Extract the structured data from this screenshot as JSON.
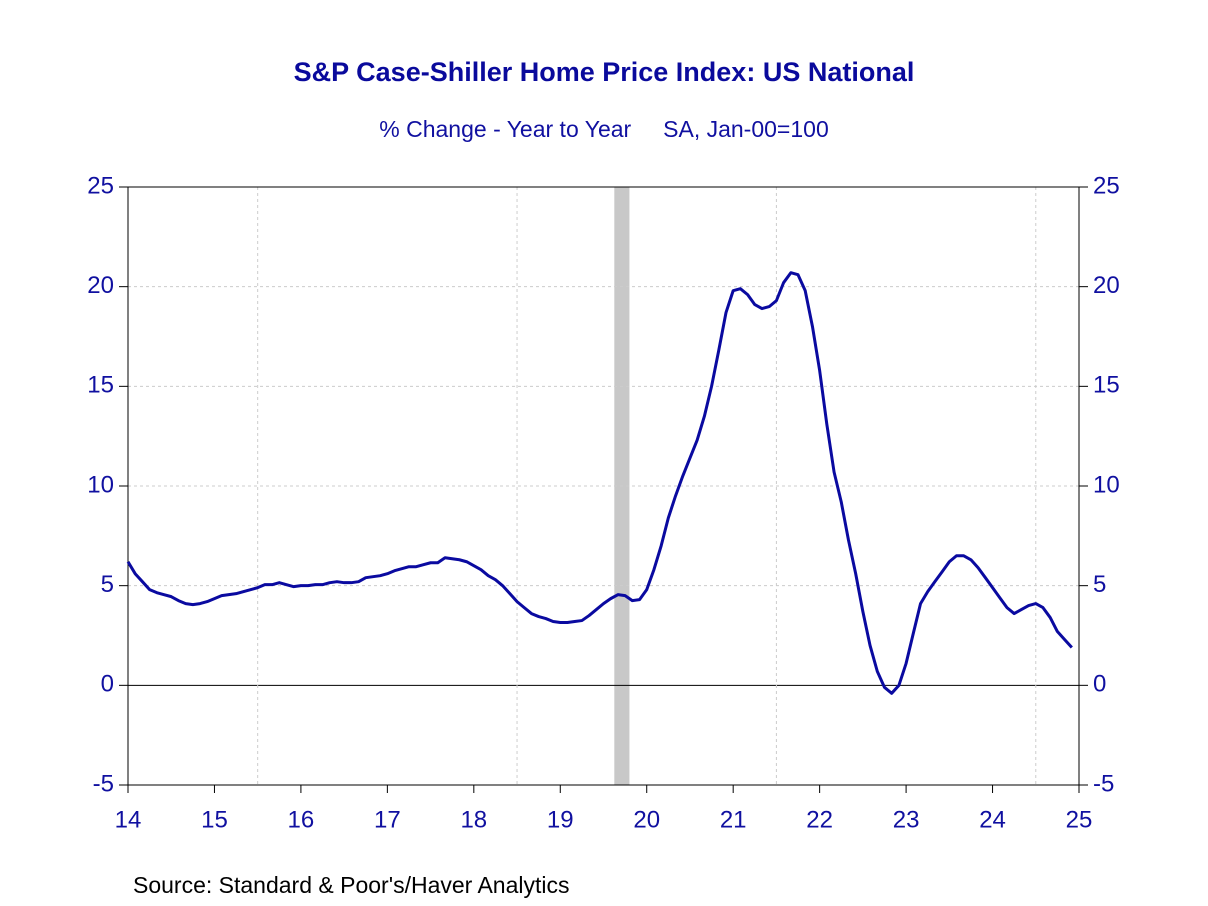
{
  "chart_data": {
    "type": "line",
    "title": "S&P Case-Shiller Home Price Index: US National",
    "subtitle": "% Change - Year to Year     SA, Jan-00=100",
    "source": "Source:  Standard & Poor's/Haver Analytics",
    "xlim": [
      2014.5,
      2025.5
    ],
    "xticks": [
      {
        "value": 2014.5,
        "label": "14"
      },
      {
        "value": 2015.5,
        "label": "15"
      },
      {
        "value": 2016.5,
        "label": "16"
      },
      {
        "value": 2017.5,
        "label": "17"
      },
      {
        "value": 2018.5,
        "label": "18"
      },
      {
        "value": 2019.5,
        "label": "19"
      },
      {
        "value": 2020.5,
        "label": "20"
      },
      {
        "value": 2021.5,
        "label": "21"
      },
      {
        "value": 2022.5,
        "label": "22"
      },
      {
        "value": 2023.5,
        "label": "23"
      },
      {
        "value": 2024.5,
        "label": "24"
      },
      {
        "value": 2025.5,
        "label": "25"
      }
    ],
    "xgrid": [
      2016,
      2019,
      2022,
      2025
    ],
    "ylim": [
      -5,
      25
    ],
    "yticks": [
      -5,
      0,
      5,
      10,
      15,
      20,
      25
    ],
    "y2lim": [
      -5,
      25
    ],
    "y2ticks": [
      -5,
      0,
      5,
      10,
      15,
      20,
      25
    ],
    "grid": true,
    "shading": {
      "x": [
        2020.125,
        2020.3
      ],
      "color": "#c8c8c8"
    },
    "x": [
      2014.5,
      2014.583,
      2014.667,
      2014.75,
      2014.833,
      2014.917,
      2015.0,
      2015.083,
      2015.167,
      2015.25,
      2015.333,
      2015.417,
      2015.5,
      2015.583,
      2015.667,
      2015.75,
      2015.833,
      2015.917,
      2016.0,
      2016.083,
      2016.167,
      2016.25,
      2016.333,
      2016.417,
      2016.5,
      2016.583,
      2016.667,
      2016.75,
      2016.833,
      2016.917,
      2017.0,
      2017.083,
      2017.167,
      2017.25,
      2017.333,
      2017.417,
      2017.5,
      2017.583,
      2017.667,
      2017.75,
      2017.833,
      2017.917,
      2018.0,
      2018.083,
      2018.167,
      2018.25,
      2018.333,
      2018.417,
      2018.5,
      2018.583,
      2018.667,
      2018.75,
      2018.833,
      2018.917,
      2019.0,
      2019.083,
      2019.167,
      2019.25,
      2019.333,
      2019.417,
      2019.5,
      2019.583,
      2019.667,
      2019.75,
      2019.833,
      2019.917,
      2020.0,
      2020.083,
      2020.167,
      2020.25,
      2020.333,
      2020.417,
      2020.5,
      2020.583,
      2020.667,
      2020.75,
      2020.833,
      2020.917,
      2021.0,
      2021.083,
      2021.167,
      2021.25,
      2021.333,
      2021.417,
      2021.5,
      2021.583,
      2021.667,
      2021.75,
      2021.833,
      2021.917,
      2022.0,
      2022.083,
      2022.167,
      2022.25,
      2022.333,
      2022.417,
      2022.5,
      2022.583,
      2022.667,
      2022.75,
      2022.833,
      2022.917,
      2023.0,
      2023.083,
      2023.167,
      2023.25,
      2023.333,
      2023.417,
      2023.5,
      2023.583,
      2023.667,
      2023.75,
      2023.833,
      2023.917,
      2024.0,
      2024.083,
      2024.167,
      2024.25,
      2024.333,
      2024.417,
      2024.5,
      2024.583,
      2024.667,
      2024.75,
      2024.833,
      2024.917,
      2025.0,
      2025.083,
      2025.167,
      2025.25,
      2025.333,
      2025.417
    ],
    "series": [
      {
        "name": "Home Price Index",
        "color": "#0a0aa0",
        "values": [
          6.2,
          5.6,
          5.2,
          4.8,
          4.65,
          4.55,
          4.45,
          4.25,
          4.1,
          4.05,
          4.1,
          4.2,
          4.35,
          4.5,
          4.55,
          4.6,
          4.7,
          4.8,
          4.9,
          5.05,
          5.05,
          5.15,
          5.05,
          4.95,
          5.0,
          5.0,
          5.05,
          5.05,
          5.15,
          5.2,
          5.15,
          5.15,
          5.2,
          5.4,
          5.45,
          5.5,
          5.6,
          5.75,
          5.85,
          5.95,
          5.95,
          6.05,
          6.15,
          6.15,
          6.4,
          6.35,
          6.3,
          6.2,
          6.0,
          5.8,
          5.5,
          5.3,
          5.0,
          4.6,
          4.2,
          3.9,
          3.6,
          3.45,
          3.35,
          3.2,
          3.15,
          3.15,
          3.2,
          3.25,
          3.5,
          3.8,
          4.1,
          4.35,
          4.55,
          4.5,
          4.25,
          4.3,
          4.8,
          5.8,
          7.0,
          8.4,
          9.5,
          10.5,
          11.4,
          12.3,
          13.5,
          15.0,
          16.8,
          18.7,
          19.8,
          19.9,
          19.6,
          19.1,
          18.9,
          19.0,
          19.3,
          20.2,
          20.7,
          20.6,
          19.8,
          18.0,
          15.8,
          13.1,
          10.7,
          9.2,
          7.3,
          5.6,
          3.7,
          2.0,
          0.7,
          -0.1,
          -0.4,
          0.0,
          1.1,
          2.6,
          4.1,
          4.7,
          5.2,
          5.7,
          6.2,
          6.5,
          6.5,
          6.3,
          5.9,
          5.4,
          4.9,
          4.4,
          3.9,
          3.6,
          3.8,
          4.0,
          4.1,
          3.9,
          3.4,
          2.7,
          2.3,
          1.9
        ]
      }
    ]
  }
}
